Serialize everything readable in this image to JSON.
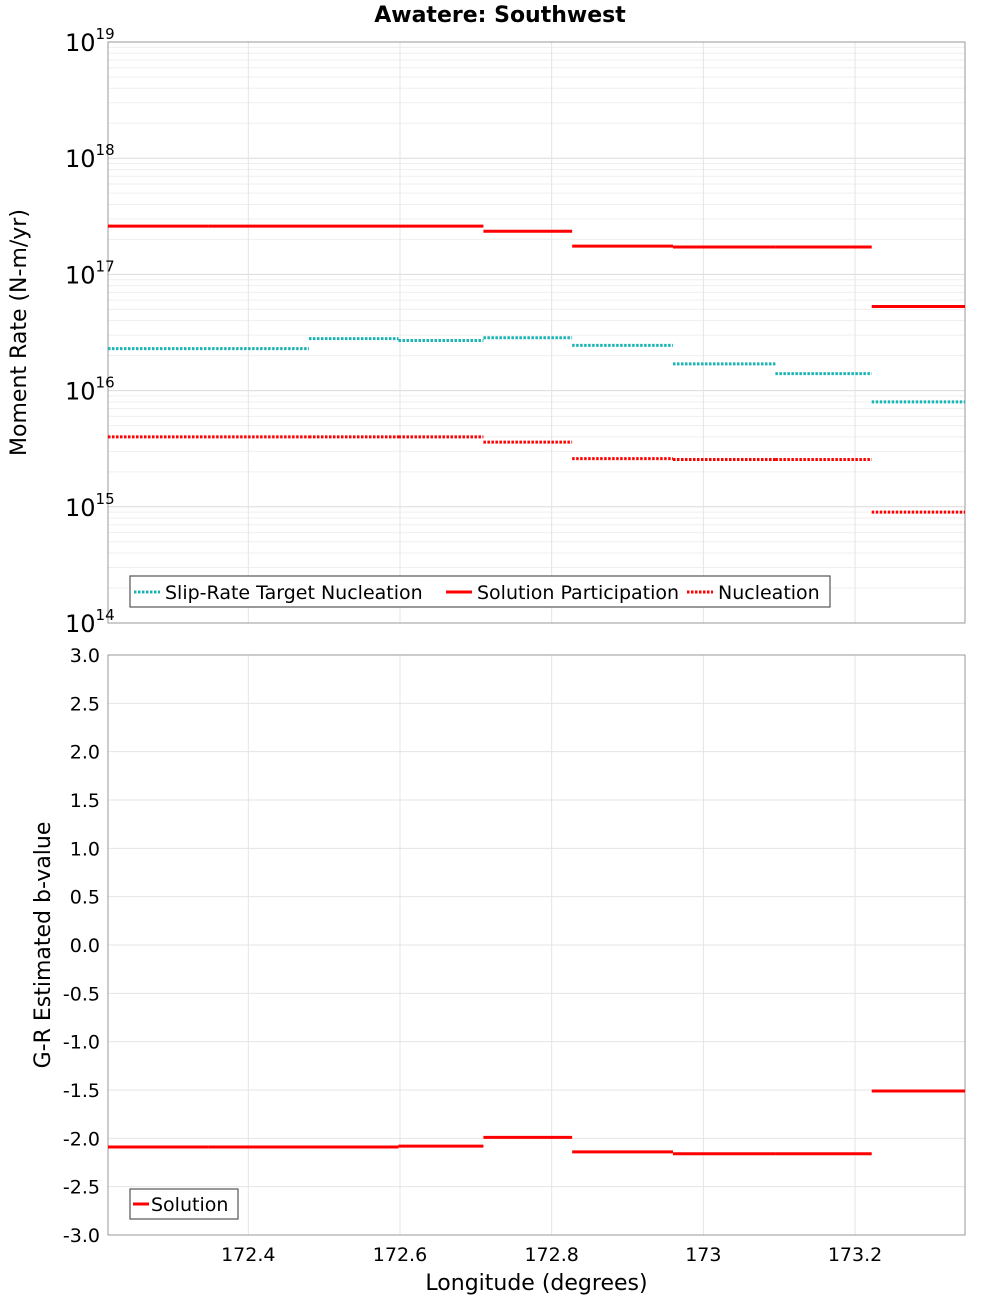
{
  "title": "Awatere: Southwest",
  "colors": {
    "slip_rate_target": "#19b5b5",
    "solution": "#ff0000",
    "nucleation": "#ff0000",
    "grid": "#e4e4e4",
    "frame": "#999999"
  },
  "chart_data": [
    {
      "type": "line",
      "panel": "top",
      "title": "Awatere: Southwest",
      "xlabel": "",
      "ylabel": "Moment Rate (N-m/yr)",
      "yscale": "log",
      "ylim": [
        100000000000000.0,
        1e+19
      ],
      "xlim": [
        172.215,
        173.345
      ],
      "y_tick_labels": [
        {
          "base": "10",
          "exp": "14",
          "value": 100000000000000.0
        },
        {
          "base": "10",
          "exp": "15",
          "value": 1000000000000000.0
        },
        {
          "base": "10",
          "exp": "16",
          "value": 1e+16
        },
        {
          "base": "10",
          "exp": "17",
          "value": 1e+17
        },
        {
          "base": "10",
          "exp": "18",
          "value": 1e+18
        },
        {
          "base": "10",
          "exp": "19",
          "value": 1e+19
        }
      ],
      "grid": true,
      "legend_position": "bottom-left",
      "series": [
        {
          "name": "Slip-Rate Target Nucleation",
          "style": "dotted",
          "color": "#19b5b5",
          "segments": [
            {
              "x": [
                172.215,
                172.347
              ],
              "y": 2.3e+16
            },
            {
              "x": [
                172.347,
                172.48
              ],
              "y": 2.3e+16
            },
            {
              "x": [
                172.48,
                172.598
              ],
              "y": 2.8e+16
            },
            {
              "x": [
                172.598,
                172.71
              ],
              "y": 2.7e+16
            },
            {
              "x": [
                172.71,
                172.827
              ],
              "y": 2.85e+16
            },
            {
              "x": [
                172.827,
                172.96
              ],
              "y": 2.45e+16
            },
            {
              "x": [
                172.96,
                173.095
              ],
              "y": 1.7e+16
            },
            {
              "x": [
                173.095,
                173.222
              ],
              "y": 1.4e+16
            },
            {
              "x": [
                173.222,
                173.345
              ],
              "y": 8000000000000000.0
            }
          ]
        },
        {
          "name": "Solution Participation",
          "style": "solid",
          "color": "#ff0000",
          "segments": [
            {
              "x": [
                172.215,
                172.347
              ],
              "y": 2.6e+17
            },
            {
              "x": [
                172.347,
                172.48
              ],
              "y": 2.6e+17
            },
            {
              "x": [
                172.48,
                172.598
              ],
              "y": 2.6e+17
            },
            {
              "x": [
                172.598,
                172.71
              ],
              "y": 2.6e+17
            },
            {
              "x": [
                172.71,
                172.827
              ],
              "y": 2.35e+17
            },
            {
              "x": [
                172.827,
                172.96
              ],
              "y": 1.75e+17
            },
            {
              "x": [
                172.96,
                173.095
              ],
              "y": 1.72e+17
            },
            {
              "x": [
                173.095,
                173.222
              ],
              "y": 1.72e+17
            },
            {
              "x": [
                173.222,
                173.345
              ],
              "y": 5.3e+16
            }
          ]
        },
        {
          "name": "Nucleation",
          "style": "dotted",
          "color": "#ff0000",
          "segments": [
            {
              "x": [
                172.215,
                172.347
              ],
              "y": 4000000000000000.0
            },
            {
              "x": [
                172.347,
                172.48
              ],
              "y": 4000000000000000.0
            },
            {
              "x": [
                172.48,
                172.598
              ],
              "y": 4000000000000000.0
            },
            {
              "x": [
                172.598,
                172.71
              ],
              "y": 4000000000000000.0
            },
            {
              "x": [
                172.71,
                172.827
              ],
              "y": 3600000000000000.0
            },
            {
              "x": [
                172.827,
                172.96
              ],
              "y": 2600000000000000.0
            },
            {
              "x": [
                172.96,
                173.095
              ],
              "y": 2550000000000000.0
            },
            {
              "x": [
                173.095,
                173.222
              ],
              "y": 2550000000000000.0
            },
            {
              "x": [
                173.222,
                173.345
              ],
              "y": 900000000000000.0
            }
          ]
        }
      ]
    },
    {
      "type": "line",
      "panel": "bottom",
      "title": "",
      "xlabel": "Longitude (degrees)",
      "ylabel": "G-R Estimated b-value",
      "yscale": "linear",
      "ylim": [
        -3.0,
        3.0
      ],
      "xlim": [
        172.215,
        173.345
      ],
      "y_tick_labels": [
        "3.0",
        "2.5",
        "2.0",
        "1.5",
        "1.0",
        "0.5",
        "0.0",
        "-0.5",
        "-1.0",
        "-1.5",
        "-2.0",
        "-2.5",
        "-3.0"
      ],
      "x_tick_labels": [
        "172.4",
        "172.6",
        "172.8",
        "173",
        "173.2"
      ],
      "x_ticks": [
        172.4,
        172.6,
        172.8,
        173.0,
        173.2
      ],
      "grid": true,
      "legend_position": "bottom-left",
      "series": [
        {
          "name": "Solution",
          "style": "solid",
          "color": "#ff0000",
          "segments": [
            {
              "x": [
                172.215,
                172.347
              ],
              "y": -2.09
            },
            {
              "x": [
                172.347,
                172.48
              ],
              "y": -2.09
            },
            {
              "x": [
                172.48,
                172.598
              ],
              "y": -2.09
            },
            {
              "x": [
                172.598,
                172.71
              ],
              "y": -2.08
            },
            {
              "x": [
                172.71,
                172.827
              ],
              "y": -1.99
            },
            {
              "x": [
                172.827,
                172.96
              ],
              "y": -2.14
            },
            {
              "x": [
                172.96,
                173.095
              ],
              "y": -2.16
            },
            {
              "x": [
                173.095,
                173.222
              ],
              "y": -2.16
            },
            {
              "x": [
                173.222,
                173.345
              ],
              "y": -1.51
            }
          ]
        }
      ]
    }
  ]
}
